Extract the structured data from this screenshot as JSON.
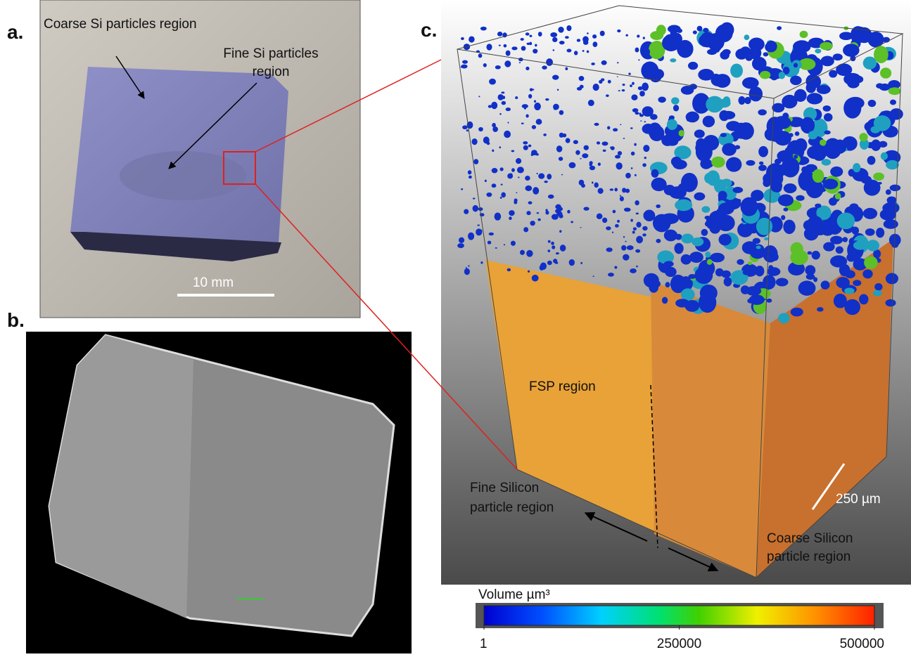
{
  "panels": [
    {
      "label": "a.",
      "annotations": [
        {
          "lines": [
            "Coarse Si particles region"
          ]
        },
        {
          "lines": [
            "Fine Si particles",
            "region"
          ]
        }
      ],
      "scale_bar": "10 mm"
    },
    {
      "label": "b."
    },
    {
      "label": "c.",
      "annotations": [
        {
          "lines": [
            "FSP region"
          ]
        },
        {
          "lines": [
            "Fine Silicon",
            "particle region"
          ]
        },
        {
          "lines": [
            "Coarse Silicon",
            "particle region"
          ]
        }
      ],
      "scale_bar": "250 µm",
      "colorbar": {
        "title": "Volume µm³",
        "lim": [
          1,
          500000
        ],
        "ticks": [
          1,
          250000,
          500000
        ]
      }
    }
  ]
}
